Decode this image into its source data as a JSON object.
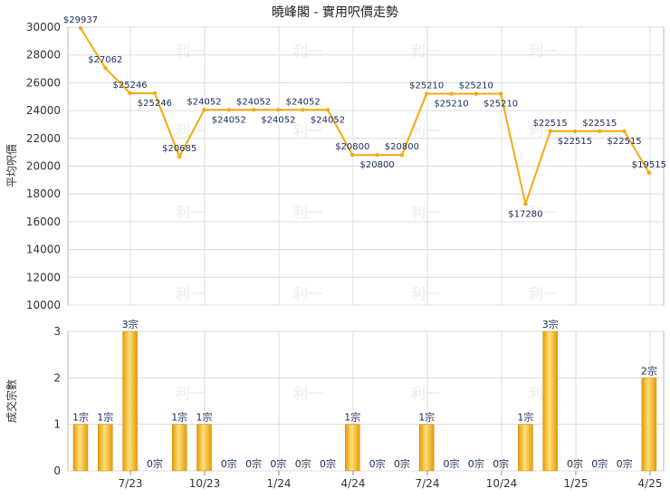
{
  "chart_data": [
    {
      "type": "line",
      "title": "曉峰閣 - 實用呎價走勢",
      "ylabel": "平均呎價",
      "ylim": [
        10000,
        30000
      ],
      "yticks": [
        "10000",
        "12000",
        "14000",
        "16000",
        "18000",
        "20000",
        "22000",
        "24000",
        "26000",
        "28000",
        "30000"
      ],
      "xticks": [
        "7/23",
        "10/23",
        "1/24",
        "4/24",
        "7/24",
        "10/24",
        "1/25",
        "4/25"
      ],
      "color": "#f5a90f",
      "values": [
        29937,
        27062,
        25246,
        25246,
        20685,
        24052,
        24052,
        24052,
        24052,
        24052,
        24052,
        20800,
        20800,
        20800,
        25210,
        25210,
        25210,
        25210,
        17280,
        22515,
        22515,
        22515,
        22515,
        19515
      ],
      "labels": [
        "$29937",
        "$27062",
        "$25246",
        "$25246",
        "$20685",
        "$24052",
        "$24052",
        "$24052",
        "$24052",
        "$24052",
        "$24052",
        "$20800",
        "$20800",
        "$20800",
        "$25210",
        "$25210",
        "$25210",
        "$25210",
        "$17280",
        "$22515",
        "$22515",
        "$22515",
        "$22515",
        "$19515"
      ]
    },
    {
      "type": "bar",
      "ylabel": "成交宗數",
      "ylim": [
        0,
        3
      ],
      "yticks": [
        "0",
        "1",
        "2",
        "3"
      ],
      "xticks": [
        "7/23",
        "10/23",
        "1/24",
        "4/24",
        "7/24",
        "10/24",
        "1/25",
        "4/25"
      ],
      "color": "#f5a90f",
      "values": [
        1,
        1,
        3,
        0,
        1,
        1,
        0,
        0,
        0,
        0,
        0,
        1,
        0,
        0,
        1,
        0,
        0,
        0,
        1,
        3,
        0,
        0,
        0,
        2
      ],
      "labels": [
        "1宗",
        "1宗",
        "3宗",
        "0宗",
        "1宗",
        "1宗",
        "0宗",
        "0宗",
        "0宗",
        "0宗",
        "0宗",
        "1宗",
        "0宗",
        "0宗",
        "1宗",
        "0宗",
        "0宗",
        "0宗",
        "1宗",
        "3宗",
        "0宗",
        "0宗",
        "0宗",
        "2宗"
      ]
    }
  ],
  "watermark": "利一"
}
